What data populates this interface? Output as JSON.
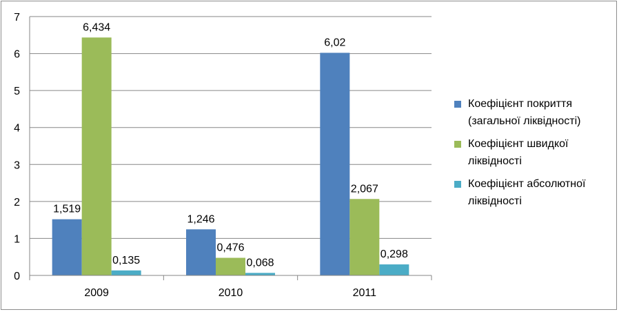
{
  "chart_data": {
    "type": "bar",
    "categories": [
      "2009",
      "2010",
      "2011"
    ],
    "series": [
      {
        "name": "Коефіцієнт покриття (загальної ліквідності)",
        "values": [
          1.519,
          1.246,
          6.02
        ],
        "labels": [
          "1,519",
          "1,246",
          "6,02"
        ],
        "color": "#4f81bd"
      },
      {
        "name": "Коефіцієнт швидкої ліквідності",
        "values": [
          6.434,
          0.476,
          2.067
        ],
        "labels": [
          "6,434",
          "0,476",
          "2,067"
        ],
        "color": "#9bbb59"
      },
      {
        "name": "Коефіцієнт абсолютної ліквідності",
        "values": [
          0.135,
          0.068,
          0.298
        ],
        "labels": [
          "0,135",
          "0,068",
          "0,298"
        ],
        "color": "#4bacc6"
      }
    ],
    "ylim": [
      0,
      7
    ],
    "yticks": [
      "0",
      "1",
      "2",
      "3",
      "4",
      "5",
      "6",
      "7"
    ],
    "grid": true,
    "legend_position": "right",
    "title": "",
    "xlabel": "",
    "ylabel": ""
  }
}
